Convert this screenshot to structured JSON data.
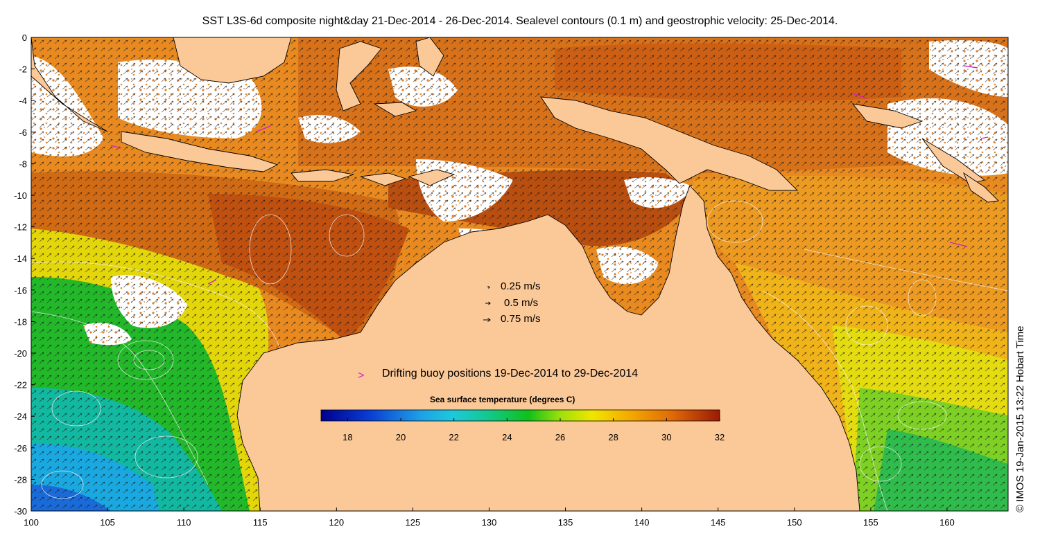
{
  "title": "SST L3S-6d composite night&day 21-Dec-2014 - 26-Dec-2014. Sealevel contours (0.1 m) and geostrophic velocity: 25-Dec-2014.",
  "credit": "© IMOS 19-Jan-2015 13:22 Hobart Time",
  "x_ticks": [
    "100",
    "105",
    "110",
    "115",
    "120",
    "125",
    "130",
    "135",
    "140",
    "145",
    "150",
    "155",
    "160"
  ],
  "y_ticks": [
    "0",
    "-2",
    "-4",
    "-6",
    "-8",
    "-10",
    "-12",
    "-14",
    "-16",
    "-18",
    "-20",
    "-22",
    "-24",
    "-26",
    "-28",
    "-30"
  ],
  "velocity_legend": {
    "items": [
      {
        "label": "0.25 m/s",
        "speed": 0.25
      },
      {
        "label": "0.5 m/s",
        "speed": 0.5
      },
      {
        "label": "0.75 m/s",
        "speed": 0.75
      }
    ]
  },
  "buoy_legend": {
    "symbol": ">",
    "label": "Drifting buoy positions 19-Dec-2014 to 29-Dec-2014"
  },
  "colorbar": {
    "title": "Sea surface temperature (degrees C)",
    "ticks": [
      "18",
      "20",
      "22",
      "24",
      "26",
      "28",
      "30",
      "32"
    ],
    "range": [
      17,
      32
    ]
  },
  "colors": {
    "land": "#fbc898",
    "buoy": "#d020d0",
    "sst_cold": "#0a14a0",
    "sst_warm": "#9a1e08"
  },
  "axes": {
    "lon_range": [
      100,
      164
    ],
    "lat_range": [
      -30,
      0
    ]
  }
}
